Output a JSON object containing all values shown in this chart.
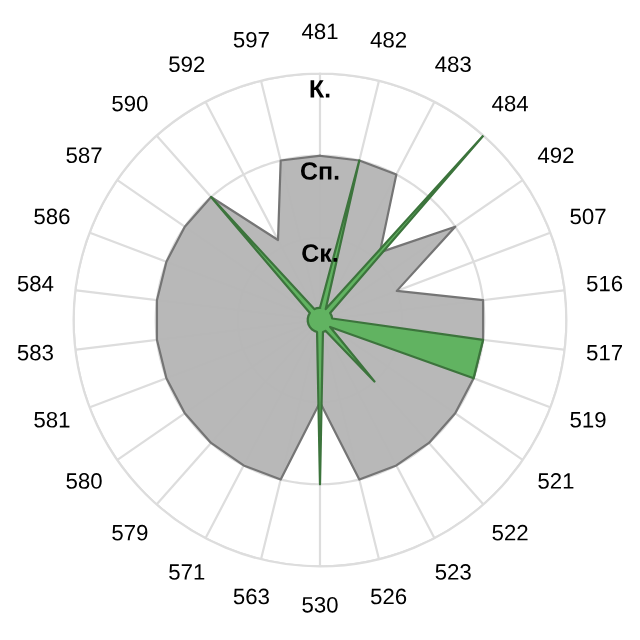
{
  "chart_data": {
    "type": "radar",
    "categories": [
      "481",
      "482",
      "483",
      "484",
      "492",
      "507",
      "516",
      "517",
      "519",
      "521",
      "522",
      "523",
      "526",
      "530",
      "563",
      "571",
      "579",
      "580",
      "581",
      "583",
      "584",
      "586",
      "587",
      "590",
      "592",
      "597"
    ],
    "series": [
      {
        "color": "#b4b4b4",
        "values": [
          2.0,
          2.0,
          2.0,
          1.1,
          2.0,
          1.0,
          2.0,
          2.0,
          2.0,
          2.0,
          2.0,
          2.0,
          2.0,
          1.0,
          2.0,
          2.0,
          2.0,
          2.0,
          2.0,
          2.0,
          2.0,
          2.0,
          2.0,
          2.0,
          1.1,
          2.0
        ]
      },
      {
        "color": "#5cb25c",
        "values": [
          0.15,
          2.0,
          0.15,
          3.0,
          0.15,
          0.15,
          0.15,
          2.0,
          2.0,
          0.15,
          1.0,
          0.15,
          0.15,
          2.0,
          0.15,
          0.15,
          0.15,
          0.15,
          0.15,
          0.15,
          0.15,
          0.15,
          0.15,
          2.0,
          0.15,
          0.15
        ]
      }
    ],
    "ylim": [
      0,
      3
    ],
    "yticks": [
      {
        "value": 1,
        "label": "Ск."
      },
      {
        "value": 2,
        "label": "Сп."
      },
      {
        "value": 3,
        "label": "К."
      }
    ],
    "grid": true,
    "legend": false
  }
}
